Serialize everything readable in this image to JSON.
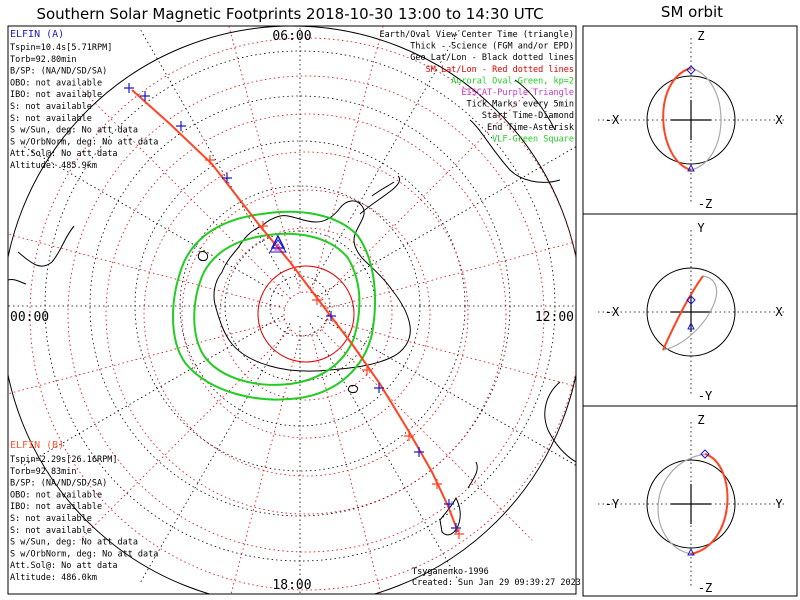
{
  "title": "Southern Solar Magnetic Footprints 2018-10-30 13:00 to 14:30 UTC",
  "orbit_title": "SM orbit",
  "mlt": {
    "top": "06:00",
    "left": "00:00",
    "right": "12:00",
    "bottom": "18:00"
  },
  "elfin_a": {
    "name": "ELFIN (A)",
    "lines": [
      "Tspin=10.4s[5.71RPM]",
      "Torb=92.80min",
      "B/SP: (NA/ND/SD/SA)",
      "OBO: not available",
      "IBO: not available",
      "S: not available",
      "S: not available",
      "S w/Sun, deg: No att data",
      "S w/OrbNorm, deg: No att data",
      "Att.Sol@: No att data",
      "Altitude: 485.9km"
    ],
    "color": "#1a1acc"
  },
  "elfin_b": {
    "name": "ELFIN (B)",
    "lines": [
      "Tspin=2.29s[26.16RPM]",
      "Torb=92.83min",
      "B/SP: (NA/ND/SD/SA)",
      "OBO: not available",
      "IBO: not available",
      "S: not available",
      "S: not available",
      "S w/Sun, deg: No att data",
      "S w/OrbNorm, deg: No att data",
      "Att.Sol@: No att data",
      "Altitude: 486.0km"
    ],
    "color": "#ff5533"
  },
  "legend": [
    {
      "text": "Earth/Oval View Center Time (triangle)",
      "color": "#000000"
    },
    {
      "text": "Thick - Science (FGM and/or EPD)",
      "color": "#000000"
    },
    {
      "text": "Geo Lat/Lon - Black dotted lines",
      "color": "#000000"
    },
    {
      "text": "SM Lat/Lon - Red dotted lines",
      "color": "#e00000"
    },
    {
      "text": "Auroral Oval-Green, kp=2",
      "color": "#22cc22"
    },
    {
      "text": "EISCAT-Purple Triangle",
      "color": "#cc33cc"
    },
    {
      "text": "Tick Marks every 5min",
      "color": "#000000"
    },
    {
      "text": "Start Time-Diamond",
      "color": "#000000"
    },
    {
      "text": "End Time-Asterisk",
      "color": "#000000"
    },
    {
      "text": "VLF-Green Square",
      "color": "#22cc22"
    }
  ],
  "footer": {
    "credit": "Tsyganenko-1996",
    "created": "Created: Sun Jan 29 09:39:27 2023"
  },
  "orbit_panels": [
    {
      "top": "Z",
      "bottom": "-Z",
      "left": "-X",
      "right": "X"
    },
    {
      "top": "Y",
      "bottom": "-Y",
      "left": "-X",
      "right": "X"
    },
    {
      "top": "Z",
      "bottom": "-Z",
      "left": "-Y",
      "right": "Y"
    }
  ]
}
